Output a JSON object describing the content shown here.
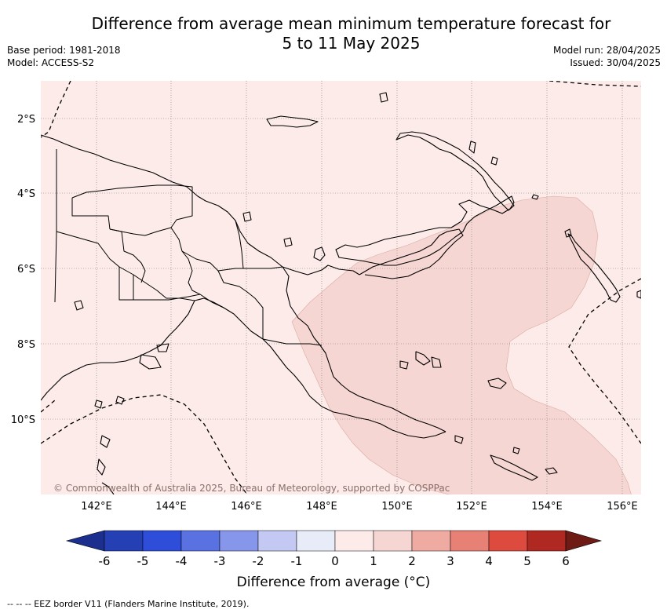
{
  "title": {
    "line1": "Difference from average mean minimum temperature forecast for",
    "line2": "5 to 11 May 2025"
  },
  "meta": {
    "base_period": "Base period: 1981-2018",
    "model": "Model: ACCESS-S2",
    "model_run": "Model run: 28/04/2025",
    "issued": "Issued: 30/04/2025"
  },
  "map": {
    "lat_labels": [
      "2°S",
      "4°S",
      "6°S",
      "8°S",
      "10°S"
    ],
    "lon_labels": [
      "142°E",
      "144°E",
      "146°E",
      "148°E",
      "150°E",
      "152°E",
      "154°E",
      "156°E"
    ],
    "copyright": "© Commonwealth of Australia 2025, Bureau of Meteorology, supported by COSPPac",
    "colors": {
      "background_anomaly_0_1": "#fcebe8",
      "anomaly_1_2": "#f6d6d2",
      "coastline": "#000000",
      "gridline": "#777777"
    }
  },
  "colorbar": {
    "ticks": [
      "-6",
      "-5",
      "-4",
      "-3",
      "-2",
      "-1",
      "0",
      "1",
      "2",
      "3",
      "4",
      "5",
      "6"
    ],
    "colors": [
      "#1c2f8e",
      "#2540b5",
      "#2e4ed9",
      "#5a71e2",
      "#8696ea",
      "#c3c9f2",
      "#e8ebf8",
      "#fcebe8",
      "#f6d6d2",
      "#efaaa2",
      "#e78075",
      "#dc4b3e",
      "#b02822",
      "#6e1b16"
    ],
    "title": "Difference from average (°C)"
  },
  "footer": "--  --  -- EEZ border V11 (Flanders Marine Institute, 2019)."
}
